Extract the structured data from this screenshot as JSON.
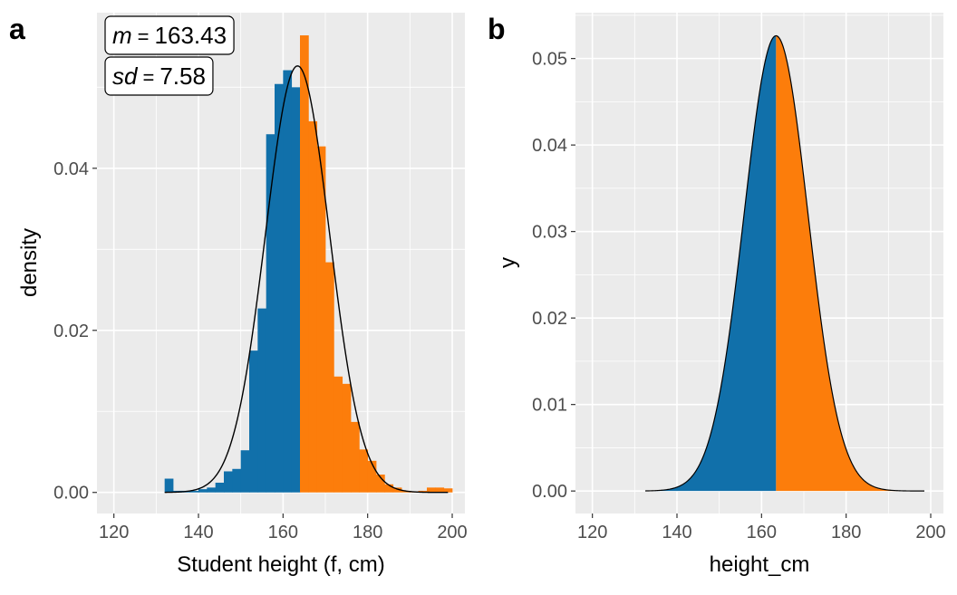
{
  "chart_data": [
    {
      "panel": "a",
      "type": "bar",
      "subtype": "histogram with normal density curve",
      "xlabel": "Student height (f, cm)",
      "ylabel": "density",
      "xlim": [
        116,
        203
      ],
      "ylim": [
        -0.0026,
        0.0592
      ],
      "x_ticks": [
        120,
        140,
        160,
        180,
        200
      ],
      "x_tick_labels": [
        "120",
        "140",
        "160",
        "180",
        "200"
      ],
      "y_ticks": [
        0.0,
        0.02,
        0.04
      ],
      "y_tick_labels": [
        "0.00",
        "0.02",
        "0.04"
      ],
      "grid": true,
      "bin_width": 2.0,
      "bins": [
        {
          "x": 133,
          "density": 0.0017,
          "group": "below_mean"
        },
        {
          "x": 135,
          "density": 0.0002,
          "group": "below_mean"
        },
        {
          "x": 137,
          "density": 0.0002,
          "group": "below_mean"
        },
        {
          "x": 139,
          "density": 0.0002,
          "group": "below_mean"
        },
        {
          "x": 141,
          "density": 0.0004,
          "group": "below_mean"
        },
        {
          "x": 143,
          "density": 0.0006,
          "group": "below_mean"
        },
        {
          "x": 145,
          "density": 0.0012,
          "group": "below_mean"
        },
        {
          "x": 147,
          "density": 0.0026,
          "group": "below_mean"
        },
        {
          "x": 149,
          "density": 0.0029,
          "group": "below_mean"
        },
        {
          "x": 151,
          "density": 0.0052,
          "group": "below_mean"
        },
        {
          "x": 153,
          "density": 0.0175,
          "group": "below_mean"
        },
        {
          "x": 155,
          "density": 0.0227,
          "group": "below_mean"
        },
        {
          "x": 157,
          "density": 0.0442,
          "group": "below_mean"
        },
        {
          "x": 159,
          "density": 0.0504,
          "group": "below_mean"
        },
        {
          "x": 161,
          "density": 0.0521,
          "group": "below_mean"
        },
        {
          "x": 163,
          "density": 0.05,
          "group": "below_mean"
        },
        {
          "x": 165,
          "density": 0.0564,
          "group": "above_mean"
        },
        {
          "x": 167,
          "density": 0.0458,
          "group": "above_mean"
        },
        {
          "x": 169,
          "density": 0.0427,
          "group": "above_mean"
        },
        {
          "x": 171,
          "density": 0.0284,
          "group": "above_mean"
        },
        {
          "x": 173,
          "density": 0.0143,
          "group": "above_mean"
        },
        {
          "x": 175,
          "density": 0.0134,
          "group": "above_mean"
        },
        {
          "x": 177,
          "density": 0.0087,
          "group": "above_mean"
        },
        {
          "x": 179,
          "density": 0.0053,
          "group": "above_mean"
        },
        {
          "x": 181,
          "density": 0.0039,
          "group": "above_mean"
        },
        {
          "x": 183,
          "density": 0.0022,
          "group": "above_mean"
        },
        {
          "x": 185,
          "density": 0.001,
          "group": "above_mean"
        },
        {
          "x": 187,
          "density": 0.0006,
          "group": "above_mean"
        },
        {
          "x": 189,
          "density": 0.0002,
          "group": "above_mean"
        },
        {
          "x": 191,
          "density": 0.0001,
          "group": "above_mean"
        },
        {
          "x": 193,
          "density": 0.0002,
          "group": "above_mean"
        },
        {
          "x": 195,
          "density": 0.0006,
          "group": "above_mean"
        },
        {
          "x": 197,
          "density": 0.0006,
          "group": "above_mean"
        },
        {
          "x": 199,
          "density": 0.0005,
          "group": "above_mean"
        }
      ],
      "curve": {
        "type": "normal",
        "mean": 163.43,
        "sd": 7.58,
        "x_range": [
          132,
          199
        ]
      },
      "annotations": [
        {
          "var": "m",
          "op": "=",
          "value": "163.43"
        },
        {
          "var": "sd",
          "op": "=",
          "value": "7.58"
        }
      ],
      "colors": {
        "below_mean": "#1170aa",
        "above_mean": "#fc7d0b",
        "curve": "#000000"
      }
    },
    {
      "panel": "b",
      "type": "area",
      "subtype": "normal density split at mean",
      "xlabel": "height_cm",
      "ylabel": "y",
      "xlim": [
        116,
        203
      ],
      "ylim": [
        -0.0026,
        0.0553
      ],
      "x_ticks": [
        120,
        140,
        160,
        180,
        200
      ],
      "x_tick_labels": [
        "120",
        "140",
        "160",
        "180",
        "200"
      ],
      "y_ticks": [
        0.0,
        0.01,
        0.02,
        0.03,
        0.04,
        0.05
      ],
      "y_tick_labels": [
        "0.00",
        "0.01",
        "0.02",
        "0.03",
        "0.04",
        "0.05"
      ],
      "grid": true,
      "curve": {
        "type": "normal",
        "mean": 163.43,
        "sd": 7.58,
        "x_range": [
          132.5,
          198.5
        ]
      },
      "split_x": 163.43,
      "colors": {
        "below_mean": "#1170aa",
        "above_mean": "#fc7d0b",
        "outline": "#000000"
      }
    }
  ]
}
